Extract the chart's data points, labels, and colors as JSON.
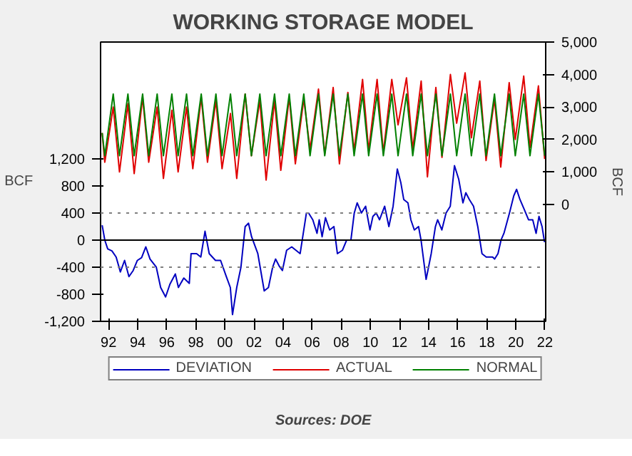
{
  "chart_data": {
    "type": "line",
    "title": "WORKING STORAGE MODEL",
    "ylabel": "BCF",
    "y2label": "BCF",
    "annotations": [
      "Sources:  DOE"
    ],
    "xlim": [
      1991.45,
      2022.05
    ],
    "xticks": [
      {
        "value": 1992,
        "label": "92"
      },
      {
        "value": 1994,
        "label": "94"
      },
      {
        "value": 1996,
        "label": "96"
      },
      {
        "value": 1998,
        "label": "98"
      },
      {
        "value": 2000,
        "label": "00"
      },
      {
        "value": 2002,
        "label": "02"
      },
      {
        "value": 2004,
        "label": "04"
      },
      {
        "value": 2006,
        "label": "06"
      },
      {
        "value": 2008,
        "label": "08"
      },
      {
        "value": 2010,
        "label": "10"
      },
      {
        "value": 2012,
        "label": "12"
      },
      {
        "value": 2014,
        "label": "14"
      },
      {
        "value": 2016,
        "label": "16"
      },
      {
        "value": 2018,
        "label": "18"
      },
      {
        "value": 2020,
        "label": "20"
      },
      {
        "value": 2022,
        "label": "22"
      }
    ],
    "ylim": [
      -1200,
      2925
    ],
    "yticks": [
      {
        "value": -1200,
        "label": "-1,200"
      },
      -800,
      -400,
      0,
      400,
      800,
      {
        "value": 1200,
        "label": "1,200"
      }
    ],
    "y2lim": [
      -3600,
      5000
    ],
    "y2ticks": [
      0,
      {
        "value": 1000,
        "label": "1,000"
      },
      {
        "value": 2000,
        "label": "2,000"
      },
      {
        "value": 3000,
        "label": "3,000"
      },
      {
        "value": 4000,
        "label": "4,000"
      },
      {
        "value": 5000,
        "label": "5,000"
      }
    ],
    "grid": false,
    "legend": "bottom",
    "marker": "none",
    "line_style": "solid",
    "ref_lines": [
      {
        "axis": "y",
        "value": 400,
        "color": "#808080",
        "line_style": "dotted"
      },
      {
        "axis": "y",
        "value": -400,
        "color": "#808080",
        "line_style": "dotted"
      },
      {
        "axis": "y",
        "value": 0,
        "color": "#000000",
        "line_style": "solid"
      }
    ],
    "series": [
      {
        "name": "DEVIATION",
        "color": "#0000c0",
        "axis": "y",
        "x": [
          1991.56,
          1991.74,
          1991.94,
          1992.23,
          1992.52,
          1992.81,
          1993.1,
          1993.4,
          1993.69,
          1993.98,
          1994.27,
          1994.56,
          1994.85,
          1995.28,
          1995.58,
          1995.92,
          1996.22,
          1996.59,
          1996.8,
          1997.17,
          1997.55,
          1997.67,
          1998.05,
          1998.34,
          1998.63,
          1998.92,
          1999.35,
          1999.7,
          2000.08,
          2000.37,
          2000.52,
          2000.81,
          2001.1,
          2001.39,
          2001.62,
          2001.83,
          2002.26,
          2002.7,
          2002.99,
          2003.28,
          2003.48,
          2003.72,
          2003.95,
          2004.24,
          2004.59,
          2004.88,
          2005.17,
          2005.6,
          2005.75,
          2006.04,
          2006.33,
          2006.48,
          2006.68,
          2006.91,
          2007.2,
          2007.49,
          2007.73,
          2008.08,
          2008.37,
          2008.66,
          2008.89,
          2009.09,
          2009.38,
          2009.67,
          2009.97,
          2010.17,
          2010.4,
          2010.63,
          2010.98,
          2011.27,
          2011.56,
          2011.85,
          2012.09,
          2012.29,
          2012.58,
          2012.78,
          2013.02,
          2013.31,
          2013.48,
          2013.83,
          2014.18,
          2014.47,
          2014.62,
          2014.91,
          2015.2,
          2015.49,
          2015.78,
          2016.07,
          2016.36,
          2016.56,
          2016.8,
          2017.09,
          2017.38,
          2017.67,
          2017.96,
          2018.4,
          2018.54,
          2018.77,
          2018.98,
          2019.18,
          2019.56,
          2019.85,
          2020.05,
          2020.28,
          2020.58,
          2020.87,
          2021.16,
          2021.39,
          2021.59,
          2021.8,
          2021.97
        ],
        "values": [
          220,
          0,
          -130,
          -160,
          -250,
          -470,
          -300,
          -540,
          -450,
          -300,
          -260,
          -100,
          -280,
          -400,
          -700,
          -840,
          -650,
          -500,
          -700,
          -560,
          -640,
          -200,
          -200,
          -250,
          130,
          -200,
          -300,
          -300,
          -530,
          -700,
          -1100,
          -700,
          -400,
          200,
          250,
          50,
          -200,
          -750,
          -700,
          -400,
          -280,
          -380,
          -450,
          -150,
          -100,
          -150,
          -200,
          400,
          400,
          300,
          100,
          300,
          50,
          330,
          150,
          200,
          -200,
          -150,
          0,
          0,
          400,
          550,
          400,
          500,
          150,
          350,
          400,
          300,
          500,
          200,
          500,
          1050,
          850,
          600,
          550,
          300,
          150,
          200,
          0,
          -580,
          -200,
          200,
          300,
          150,
          400,
          500,
          1100,
          900,
          550,
          700,
          600,
          500,
          200,
          -200,
          -250,
          -250,
          -280,
          -200,
          0,
          100,
          400,
          650,
          750,
          600,
          450,
          300,
          300,
          100,
          350,
          200,
          -30
        ]
      },
      {
        "name": "ACTUAL",
        "color": "#e00000",
        "axis": "y2",
        "x": [
          1991.56,
          1991.74,
          1992.32,
          1992.75,
          1993.33,
          1993.76,
          1994.34,
          1994.76,
          1995.34,
          1995.77,
          1996.35,
          1996.78,
          1997.36,
          1997.79,
          1998.37,
          1998.8,
          1999.38,
          1999.8,
          2000.38,
          2000.81,
          2001.39,
          2001.82,
          2002.4,
          2002.83,
          2003.41,
          2003.84,
          2004.42,
          2004.84,
          2005.42,
          2005.85,
          2006.43,
          2006.86,
          2007.44,
          2007.87,
          2008.45,
          2008.88,
          2009.46,
          2009.88,
          2010.46,
          2010.89,
          2011.47,
          2011.9,
          2012.48,
          2012.91,
          2013.49,
          2013.92,
          2014.5,
          2014.92,
          2015.5,
          2015.93,
          2016.51,
          2016.94,
          2017.52,
          2017.95,
          2018.53,
          2018.96,
          2019.54,
          2019.96,
          2020.54,
          2020.97,
          2021.55,
          2021.98
        ],
        "values": [
          2200,
          1300,
          3000,
          1000,
          3100,
          950,
          3300,
          1300,
          3000,
          800,
          2900,
          1000,
          3000,
          1100,
          3300,
          1300,
          3200,
          1100,
          2800,
          800,
          3400,
          1500,
          3200,
          750,
          3200,
          1050,
          3300,
          1250,
          3250,
          1700,
          3550,
          1550,
          3600,
          1250,
          3450,
          1650,
          3850,
          1650,
          3850,
          1600,
          3850,
          2450,
          3900,
          1700,
          3800,
          850,
          3600,
          1450,
          4000,
          2500,
          4050,
          2050,
          3800,
          1350,
          3250,
          1150,
          3750,
          2000,
          3950,
          1750,
          3650,
          1400
        ]
      },
      {
        "name": "NORMAL",
        "color": "#008000",
        "axis": "y2",
        "x": [
          1991.56,
          1991.74,
          1992.32,
          1992.75,
          1993.33,
          1993.76,
          1994.34,
          1994.76,
          1995.34,
          1995.77,
          1996.35,
          1996.78,
          1997.36,
          1997.79,
          1998.37,
          1998.8,
          1999.38,
          1999.8,
          2000.38,
          2000.81,
          2001.39,
          2001.82,
          2002.4,
          2002.83,
          2003.41,
          2003.84,
          2004.42,
          2004.84,
          2005.42,
          2005.85,
          2006.43,
          2006.86,
          2007.44,
          2007.87,
          2008.45,
          2008.88,
          2009.46,
          2009.88,
          2010.46,
          2010.89,
          2011.47,
          2011.9,
          2012.48,
          2012.91,
          2013.49,
          2013.92,
          2014.5,
          2014.92,
          2015.5,
          2015.93,
          2016.51,
          2016.94,
          2017.52,
          2017.95,
          2018.53,
          2018.96,
          2019.54,
          2019.96,
          2020.54,
          2020.97,
          2021.55,
          2021.98
        ],
        "values": [
          2200,
          1500,
          3400,
          1500,
          3400,
          1500,
          3400,
          1500,
          3400,
          1500,
          3400,
          1500,
          3400,
          1500,
          3400,
          1500,
          3400,
          1500,
          3400,
          1500,
          3400,
          1500,
          3400,
          1500,
          3400,
          1500,
          3400,
          1500,
          3400,
          1500,
          3400,
          1500,
          3400,
          1500,
          3400,
          1500,
          3400,
          1500,
          3400,
          1500,
          3400,
          1500,
          3400,
          1500,
          3400,
          1500,
          3400,
          1500,
          3400,
          1500,
          3400,
          1500,
          3400,
          1500,
          3400,
          1500,
          3400,
          1500,
          3400,
          1500,
          3400,
          1500
        ]
      }
    ]
  }
}
